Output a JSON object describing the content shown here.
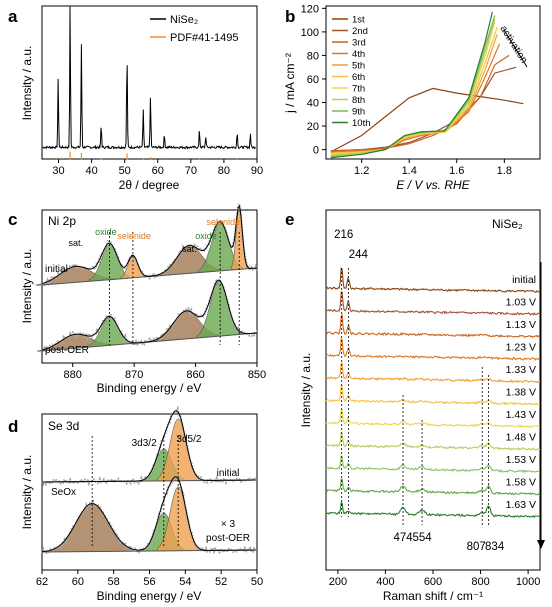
{
  "panels": {
    "a": {
      "label": "a"
    },
    "b": {
      "label": "b"
    },
    "c": {
      "label": "c"
    },
    "d": {
      "label": "d"
    },
    "e": {
      "label": "e"
    }
  },
  "chart_data": [
    {
      "panel": "a",
      "type": "bar",
      "title": "",
      "xlabel": "2θ / degree",
      "ylabel": "Intensity / a.u.",
      "xlim": [
        25,
        90
      ],
      "xticks": [
        30,
        40,
        50,
        60,
        70,
        80,
        90
      ],
      "legend": {
        "placement": "top-right",
        "entries": [
          "NiSe₂",
          "PDF#41-1495"
        ]
      },
      "series": [
        {
          "name": "NiSe₂",
          "color": "#000000",
          "style": "line",
          "x": [
            29.9,
            33.5,
            36.9,
            42.9,
            50.7,
            55.6,
            57.8,
            62.0,
            72.6,
            74.5,
            84.0,
            88.0
          ],
          "values": [
            44,
            92,
            66,
            14,
            60,
            24,
            33,
            8,
            11,
            7,
            10,
            9
          ]
        },
        {
          "name": "PDF#41-1495",
          "color": "#ff8c1a",
          "style": "sticks",
          "x": [
            29.9,
            33.5,
            36.9,
            42.9,
            50.7,
            55.6,
            57.8,
            62.0,
            72.6,
            74.5,
            84.0,
            88.0
          ],
          "values": [
            8,
            28,
            24,
            5,
            22,
            6,
            10,
            3,
            4,
            3,
            4,
            3
          ]
        }
      ]
    },
    {
      "panel": "b",
      "type": "line",
      "title": "",
      "xlabel": "E / V vs. RHE",
      "ylabel": "j / mA cm⁻²",
      "xlim": [
        1.05,
        1.95
      ],
      "ylim": [
        -8,
        122
      ],
      "xticks": [
        1.2,
        1.4,
        1.6,
        1.8
      ],
      "yticks": [
        0,
        20,
        40,
        60,
        80,
        100,
        120
      ],
      "annotation": "activation",
      "legend": {
        "placement": "top-left",
        "entries": [
          "1st",
          "2nd",
          "3rd",
          "4th",
          "5th",
          "6th",
          "7th",
          "8th",
          "9th",
          "10th"
        ]
      },
      "series": [
        {
          "name": "1st",
          "color": "#8B4513",
          "x": [
            1.07,
            1.2,
            1.3,
            1.4,
            1.5,
            1.6,
            1.7,
            1.8,
            1.88
          ],
          "values": [
            -2,
            12,
            28,
            44,
            52,
            48,
            45,
            42,
            39
          ]
        },
        {
          "name": "2nd",
          "color": "#A0522D",
          "x": [
            1.07,
            1.2,
            1.3,
            1.4,
            1.5,
            1.6,
            1.7,
            1.76,
            1.85
          ],
          "values": [
            -1,
            0,
            2,
            6,
            14,
            25,
            45,
            65,
            70
          ]
        },
        {
          "name": "3rd",
          "color": "#C8641E",
          "x": [
            1.07,
            1.2,
            1.3,
            1.4,
            1.5,
            1.6,
            1.7,
            1.76,
            1.82
          ],
          "values": [
            -1,
            0,
            1,
            5,
            12,
            22,
            45,
            72,
            80
          ]
        },
        {
          "name": "4th",
          "color": "#E07820",
          "x": [
            1.07,
            1.2,
            1.3,
            1.38,
            1.45,
            1.55,
            1.65,
            1.72,
            1.78
          ],
          "values": [
            -2,
            -1,
            0,
            8,
            12,
            15,
            32,
            62,
            90
          ]
        },
        {
          "name": "5th",
          "color": "#F0A030",
          "x": [
            1.07,
            1.2,
            1.3,
            1.38,
            1.45,
            1.55,
            1.65,
            1.72,
            1.77
          ],
          "values": [
            -3,
            -2,
            0,
            9,
            13,
            15,
            34,
            68,
            98
          ]
        },
        {
          "name": "6th",
          "color": "#F5C242",
          "x": [
            1.07,
            1.2,
            1.3,
            1.38,
            1.45,
            1.55,
            1.65,
            1.72,
            1.77
          ],
          "values": [
            -3,
            -2,
            0,
            10,
            13,
            15,
            36,
            74,
            104
          ]
        },
        {
          "name": "7th",
          "color": "#E6D84A",
          "x": [
            1.07,
            1.2,
            1.3,
            1.38,
            1.45,
            1.55,
            1.65,
            1.72,
            1.76
          ],
          "values": [
            -4,
            -3,
            0,
            11,
            14,
            16,
            38,
            80,
            108
          ]
        },
        {
          "name": "8th",
          "color": "#B5CF5A",
          "x": [
            1.07,
            1.2,
            1.3,
            1.38,
            1.45,
            1.55,
            1.65,
            1.72,
            1.76
          ],
          "values": [
            -5,
            -3,
            0,
            11,
            14,
            16,
            40,
            84,
            111
          ]
        },
        {
          "name": "9th",
          "color": "#7DB858",
          "x": [
            1.07,
            1.2,
            1.3,
            1.38,
            1.45,
            1.55,
            1.65,
            1.72,
            1.76
          ],
          "values": [
            -6,
            -4,
            0,
            12,
            15,
            16,
            42,
            88,
            114
          ]
        },
        {
          "name": "10th",
          "color": "#2E7D32",
          "x": [
            1.07,
            1.2,
            1.3,
            1.38,
            1.45,
            1.55,
            1.65,
            1.72,
            1.75
          ],
          "values": [
            -7,
            -4,
            0,
            12,
            15,
            16,
            44,
            92,
            117
          ]
        }
      ]
    },
    {
      "panel": "c",
      "type": "line",
      "title": "Ni 2p",
      "xlabel": "Binding energy / eV",
      "ylabel": "Intensity / a.u.",
      "xlim": [
        885,
        850
      ],
      "xticks": [
        880,
        870,
        860,
        850
      ],
      "annotations": [
        "sat.",
        "oxide",
        "selenide",
        "sat.",
        "oxide",
        "selenide",
        "initial",
        "post-OER"
      ],
      "components": [
        {
          "spectrum": "initial",
          "assignment": "sat.",
          "color": "#A07850",
          "center": 879.5
        },
        {
          "spectrum": "initial",
          "assignment": "oxide",
          "color": "#6AA84F",
          "center": 874.0
        },
        {
          "spectrum": "initial",
          "assignment": "selenide",
          "color": "#F0A050",
          "center": 870.2
        },
        {
          "spectrum": "initial",
          "assignment": "sat.",
          "color": "#A07850",
          "center": 861.0
        },
        {
          "spectrum": "initial",
          "assignment": "oxide",
          "color": "#6AA84F",
          "center": 856.0
        },
        {
          "spectrum": "initial",
          "assignment": "selenide",
          "color": "#F0A050",
          "center": 852.9
        },
        {
          "spectrum": "post-OER",
          "assignment": "sat.",
          "color": "#A07850",
          "center": 879.5
        },
        {
          "spectrum": "post-OER",
          "assignment": "oxide",
          "color": "#6AA84F",
          "center": 874.0
        },
        {
          "spectrum": "post-OER",
          "assignment": "sat.",
          "color": "#A07850",
          "center": 861.5
        },
        {
          "spectrum": "post-OER",
          "assignment": "oxide",
          "color": "#6AA84F",
          "center": 856.2
        }
      ]
    },
    {
      "panel": "d",
      "type": "line",
      "title": "Se 3d",
      "xlabel": "Binding energy / eV",
      "ylabel": "Intensity / a.u.",
      "xlim": [
        62,
        50
      ],
      "xticks": [
        62,
        60,
        58,
        56,
        54,
        52,
        50
      ],
      "annotations": [
        "3d3/2",
        "3d5/2",
        "initial",
        "SeOx",
        "× 3",
        "post-OER"
      ],
      "components": [
        {
          "spectrum": "initial",
          "assignment": "3d3/2",
          "color": "#6AA84F",
          "center": 55.2
        },
        {
          "spectrum": "initial",
          "assignment": "3d5/2",
          "color": "#F0A050",
          "center": 54.4
        },
        {
          "spectrum": "post-OER",
          "assignment": "SeOx",
          "color": "#A07850",
          "center": 59.2
        },
        {
          "spectrum": "post-OER",
          "assignment": "3d3/2",
          "color": "#6AA84F",
          "center": 55.2
        },
        {
          "spectrum": "post-OER",
          "assignment": "3d5/2",
          "color": "#F0A050",
          "center": 54.4
        }
      ]
    },
    {
      "panel": "e",
      "type": "line",
      "title": "NiSe₂",
      "xlabel": "Raman shift / cm⁻¹",
      "ylabel": "Intensity / a.u.",
      "xlim": [
        150,
        1050
      ],
      "xticks": [
        200,
        400,
        600,
        800,
        1000
      ],
      "peak_labels": [
        216,
        244,
        474,
        554,
        807,
        834
      ],
      "series": [
        {
          "name": "initial",
          "color": "#8B4513"
        },
        {
          "name": "1.03 V",
          "color": "#A0522D"
        },
        {
          "name": "1.13 V",
          "color": "#C8641E"
        },
        {
          "name": "1.23 V",
          "color": "#E07820"
        },
        {
          "name": "1.33 V",
          "color": "#F0A030"
        },
        {
          "name": "1.38 V",
          "color": "#F5C242"
        },
        {
          "name": "1.43 V",
          "color": "#E6D84A"
        },
        {
          "name": "1.48 V",
          "color": "#B5CF5A"
        },
        {
          "name": "1.53 V",
          "color": "#8CC063"
        },
        {
          "name": "1.58 V",
          "color": "#5FA84A"
        },
        {
          "name": "1.63 V",
          "color": "#2E7D32"
        }
      ]
    }
  ]
}
